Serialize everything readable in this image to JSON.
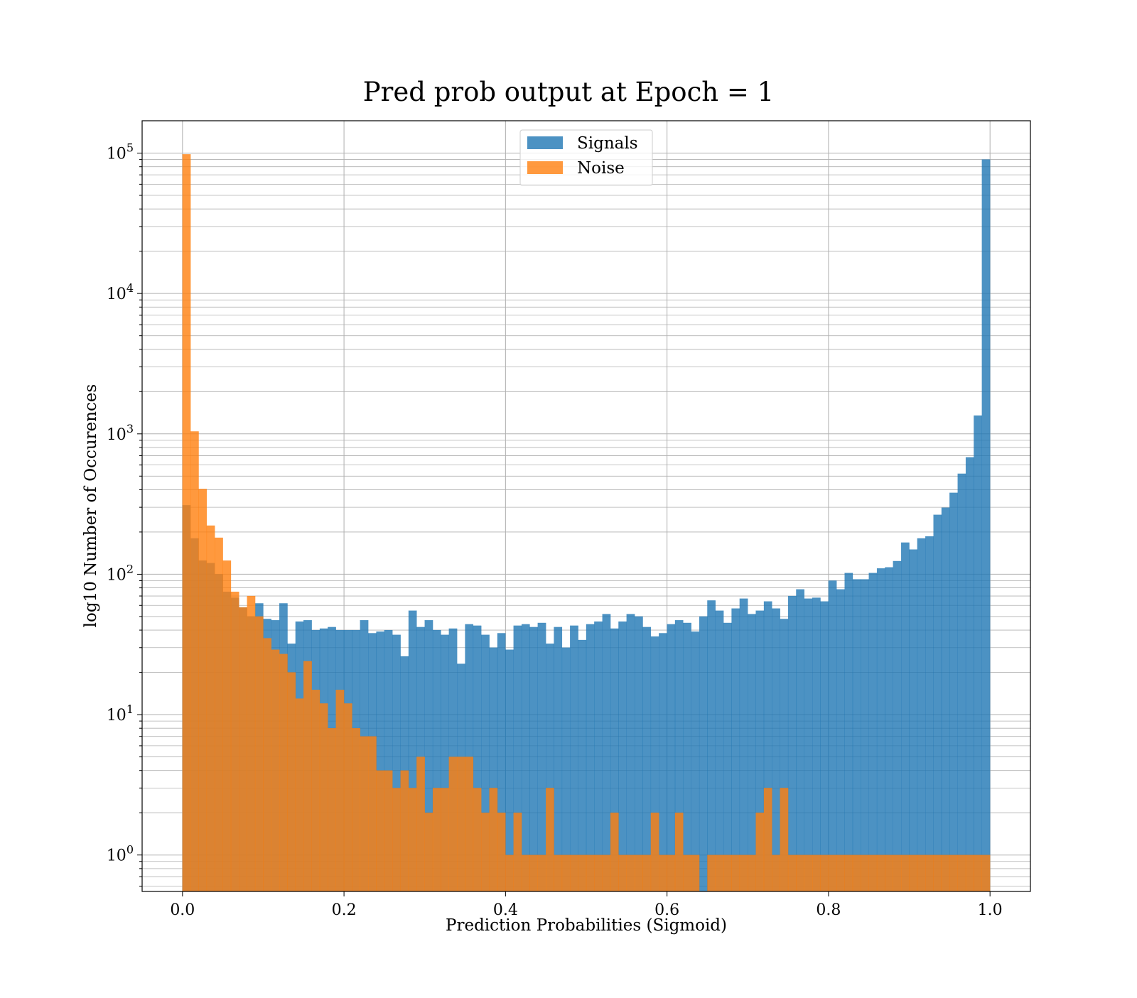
{
  "chart_data": {
    "type": "histogram",
    "title": "Pred prob output at Epoch = 1",
    "xlabel": "Prediction Probabilities (Sigmoid)",
    "ylabel": "log10 Number of Occurences",
    "xlim": [
      -0.05,
      1.05
    ],
    "ylim": [
      0.55,
      170000
    ],
    "yscale": "log",
    "grid": true,
    "legend_position": "top-center",
    "bin_start": 0.0,
    "bin_width": 0.01,
    "xticks": [
      {
        "value": 0.0,
        "label": "0.0"
      },
      {
        "value": 0.2,
        "label": "0.2"
      },
      {
        "value": 0.4,
        "label": "0.4"
      },
      {
        "value": 0.6,
        "label": "0.6"
      },
      {
        "value": 0.8,
        "label": "0.8"
      },
      {
        "value": 1.0,
        "label": "1.0"
      }
    ],
    "yticks": [
      {
        "value": 1,
        "base": "10",
        "exp": "0"
      },
      {
        "value": 10,
        "base": "10",
        "exp": "1"
      },
      {
        "value": 100,
        "base": "10",
        "exp": "2"
      },
      {
        "value": 1000,
        "base": "10",
        "exp": "3"
      },
      {
        "value": 10000,
        "base": "10",
        "exp": "4"
      },
      {
        "value": 100000,
        "base": "10",
        "exp": "5"
      }
    ],
    "series": [
      {
        "name": "Signals",
        "color": "#1f77b4",
        "opacity": 0.8,
        "values": [
          310,
          180,
          125,
          120,
          100,
          75,
          68,
          58,
          50,
          62,
          48,
          47,
          62,
          32,
          46,
          47,
          40,
          41,
          42,
          40,
          40,
          40,
          47,
          38,
          39,
          40,
          37,
          26,
          55,
          42,
          47,
          40,
          37,
          41,
          23,
          44,
          43,
          37,
          30,
          38,
          29,
          43,
          44,
          42,
          45,
          32,
          42,
          30,
          43,
          34,
          44,
          46,
          52,
          41,
          46,
          52,
          50,
          42,
          36,
          38,
          44,
          47,
          45,
          39,
          50,
          65,
          55,
          45,
          57,
          67,
          52,
          55,
          64,
          57,
          48,
          70,
          78,
          67,
          68,
          64,
          90,
          78,
          102,
          92,
          92,
          102,
          110,
          112,
          124,
          168,
          150,
          180,
          186,
          265,
          298,
          380,
          520,
          680,
          1350,
          90000
        ]
      },
      {
        "name": "Noise",
        "color": "#ff7f0e",
        "opacity": 0.8,
        "values": [
          98000,
          1040,
          405,
          222,
          182,
          125,
          75,
          58,
          70,
          50,
          35,
          29,
          27,
          20,
          13,
          24,
          15,
          12,
          8,
          15,
          12,
          8,
          7,
          7,
          4,
          4,
          3,
          4,
          3,
          5,
          2,
          3,
          3,
          5,
          5,
          5,
          3,
          2,
          3,
          2,
          1,
          2,
          1,
          1,
          1,
          3,
          1,
          1,
          1,
          1,
          1,
          1,
          1,
          2,
          1,
          1,
          1,
          1,
          2,
          1,
          1,
          2,
          1,
          1,
          0,
          1,
          1,
          1,
          1,
          1,
          1,
          2,
          3,
          1,
          3,
          1,
          1,
          1,
          1,
          1,
          1,
          1,
          1,
          1,
          1,
          1,
          1,
          1,
          1,
          1,
          1,
          1,
          1,
          1,
          1,
          1,
          1,
          1,
          1,
          1
        ]
      }
    ]
  }
}
